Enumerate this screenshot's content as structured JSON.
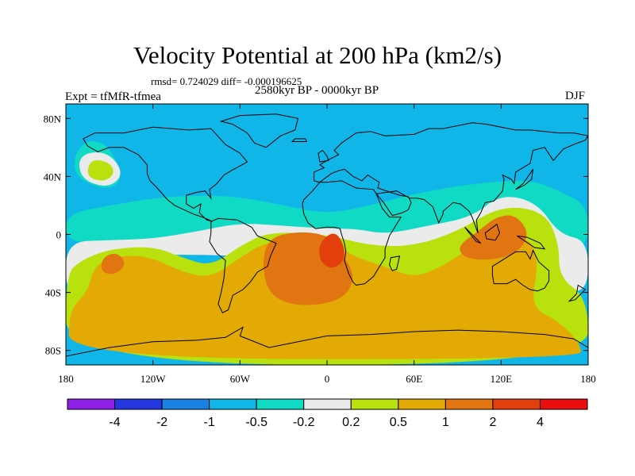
{
  "title": "Velocity Potential at 200 hPa (km2/s)",
  "stats_line": "rmsd= 0.724029 diff= -0.000196625",
  "expt_label": "Expt = tfMfR-tfmea",
  "period_label": "2580kyr BP - 0000kyr BP",
  "season_label": "DJF",
  "chart_data": {
    "type": "heatmap",
    "projection": "cylindrical-equidistant",
    "x_range": [
      -180,
      180
    ],
    "y_range": [
      -90,
      90
    ],
    "x_ticks": [
      {
        "value": -180,
        "label": "180"
      },
      {
        "value": -120,
        "label": "120W"
      },
      {
        "value": -60,
        "label": "60W"
      },
      {
        "value": 0,
        "label": "0"
      },
      {
        "value": 60,
        "label": "60E"
      },
      {
        "value": 120,
        "label": "120E"
      },
      {
        "value": 180,
        "label": "180"
      }
    ],
    "y_ticks": [
      {
        "value": 80,
        "label": "80N"
      },
      {
        "value": 40,
        "label": "40N"
      },
      {
        "value": 0,
        "label": "0"
      },
      {
        "value": -40,
        "label": "40S"
      },
      {
        "value": -80,
        "label": "80S"
      }
    ],
    "levels": [
      "-4",
      "-2",
      "-1",
      "-0.5",
      "-0.2",
      "0.2",
      "0.5",
      "1",
      "2",
      "4"
    ],
    "colors": [
      "#8f1fe6",
      "#2436e0",
      "#1782e2",
      "#11b6e9",
      "#10d9c4",
      "#ebebeb",
      "#b8e10e",
      "#e3aa06",
      "#e07512",
      "#e33f0c",
      "#e90d0d"
    ],
    "regions": [
      {
        "level_index": 3,
        "shape": "rect",
        "lon": [
          -180,
          180
        ],
        "lat": [
          -90,
          90
        ]
      },
      {
        "level_index": 4,
        "shape": "blob",
        "points": [
          [
            -180,
            14
          ],
          [
            -150,
            20
          ],
          [
            -120,
            25
          ],
          [
            -90,
            27
          ],
          [
            -60,
            26
          ],
          [
            -30,
            20
          ],
          [
            0,
            14
          ],
          [
            30,
            20
          ],
          [
            60,
            28
          ],
          [
            100,
            35
          ],
          [
            140,
            38
          ],
          [
            160,
            30
          ],
          [
            180,
            20
          ],
          [
            180,
            -10
          ],
          [
            150,
            -18
          ],
          [
            130,
            -20
          ],
          [
            100,
            -16
          ],
          [
            60,
            -12
          ],
          [
            30,
            -12
          ],
          [
            0,
            -8
          ],
          [
            -40,
            -5
          ],
          [
            -80,
            -2
          ],
          [
            -120,
            -4
          ],
          [
            -160,
            -6
          ],
          [
            -180,
            -4
          ]
        ]
      },
      {
        "level_index": 4,
        "shape": "blob",
        "points": [
          [
            -160,
            65
          ],
          [
            -150,
            60
          ],
          [
            -140,
            40
          ],
          [
            -150,
            30
          ],
          [
            -172,
            38
          ],
          [
            -175,
            52
          ],
          [
            -168,
            63
          ]
        ]
      },
      {
        "level_index": 5,
        "shape": "blob",
        "points": [
          [
            -180,
            -5
          ],
          [
            -150,
            -4
          ],
          [
            -120,
            -3
          ],
          [
            -90,
            2
          ],
          [
            -60,
            8
          ],
          [
            -30,
            6
          ],
          [
            0,
            4
          ],
          [
            20,
            4
          ],
          [
            40,
            0
          ],
          [
            70,
            6
          ],
          [
            100,
            12
          ],
          [
            120,
            28
          ],
          [
            145,
            22
          ],
          [
            160,
            0
          ],
          [
            180,
            -4
          ],
          [
            180,
            -40
          ],
          [
            160,
            -38
          ],
          [
            140,
            -28
          ],
          [
            100,
            -26
          ],
          [
            80,
            -18
          ],
          [
            60,
            -14
          ],
          [
            30,
            -14
          ],
          [
            0,
            -10
          ],
          [
            -40,
            -16
          ],
          [
            -80,
            -14
          ],
          [
            -120,
            -14
          ],
          [
            -150,
            -20
          ],
          [
            -170,
            -36
          ],
          [
            -180,
            -40
          ]
        ]
      },
      {
        "level_index": 5,
        "shape": "blob",
        "points": [
          [
            -165,
            57
          ],
          [
            -150,
            56
          ],
          [
            -140,
            42
          ],
          [
            -150,
            32
          ],
          [
            -168,
            37
          ],
          [
            -172,
            50
          ]
        ]
      },
      {
        "level_index": 6,
        "shape": "blob",
        "points": [
          [
            -180,
            -28
          ],
          [
            -170,
            -18
          ],
          [
            -150,
            -10
          ],
          [
            -120,
            -8
          ],
          [
            -100,
            -16
          ],
          [
            -80,
            -22
          ],
          [
            -60,
            -8
          ],
          [
            -40,
            2
          ],
          [
            0,
            0
          ],
          [
            30,
            -8
          ],
          [
            60,
            -8
          ],
          [
            90,
            2
          ],
          [
            120,
            20
          ],
          [
            150,
            16
          ],
          [
            160,
            -6
          ],
          [
            160,
            -30
          ],
          [
            180,
            -44
          ],
          [
            180,
            -90
          ],
          [
            -180,
            -90
          ]
        ]
      },
      {
        "level_index": 6,
        "shape": "blob",
        "points": [
          [
            -163,
            52
          ],
          [
            -150,
            50
          ],
          [
            -146,
            42
          ],
          [
            -154,
            36
          ],
          [
            -166,
            40
          ]
        ]
      },
      {
        "level_index": 7,
        "shape": "blob",
        "points": [
          [
            -160,
            -20
          ],
          [
            -140,
            -14
          ],
          [
            -120,
            -16
          ],
          [
            -100,
            -26
          ],
          [
            -80,
            -30
          ],
          [
            -60,
            -16
          ],
          [
            -40,
            -4
          ],
          [
            0,
            -4
          ],
          [
            20,
            -16
          ],
          [
            40,
            -22
          ],
          [
            60,
            -30
          ],
          [
            80,
            -22
          ],
          [
            100,
            -8
          ],
          [
            120,
            -4
          ],
          [
            140,
            -2
          ],
          [
            146,
            -20
          ],
          [
            140,
            -50
          ],
          [
            160,
            -60
          ],
          [
            175,
            -76
          ],
          [
            175,
            -86
          ],
          [
            -178,
            -86
          ],
          [
            -178,
            -52
          ],
          [
            -165,
            -40
          ]
        ]
      },
      {
        "level_index": 8,
        "shape": "blob",
        "points": [
          [
            -40,
            -2
          ],
          [
            -20,
            2
          ],
          [
            0,
            0
          ],
          [
            10,
            -12
          ],
          [
            20,
            -30
          ],
          [
            10,
            -46
          ],
          [
            -20,
            -50
          ],
          [
            -40,
            -42
          ],
          [
            -45,
            -20
          ]
        ]
      },
      {
        "level_index": 8,
        "shape": "blob",
        "points": [
          [
            90,
            -8
          ],
          [
            104,
            2
          ],
          [
            116,
            12
          ],
          [
            130,
            14
          ],
          [
            140,
            0
          ],
          [
            130,
            -14
          ],
          [
            110,
            -18
          ],
          [
            94,
            -16
          ]
        ]
      },
      {
        "level_index": 8,
        "shape": "blob",
        "points": [
          [
            -155,
            -16
          ],
          [
            -145,
            -12
          ],
          [
            -138,
            -20
          ],
          [
            -146,
            -28
          ],
          [
            -156,
            -26
          ]
        ]
      },
      {
        "level_index": 9,
        "shape": "blob",
        "points": [
          [
            -2,
            -2
          ],
          [
            6,
            2
          ],
          [
            12,
            -8
          ],
          [
            12,
            -18
          ],
          [
            4,
            -24
          ],
          [
            -4,
            -20
          ],
          [
            -6,
            -10
          ]
        ]
      }
    ]
  },
  "colorbar": {
    "labels": [
      "-4",
      "-2",
      "-1",
      "-0.5",
      "-0.2",
      "0.2",
      "0.5",
      "1",
      "2",
      "4"
    ]
  }
}
